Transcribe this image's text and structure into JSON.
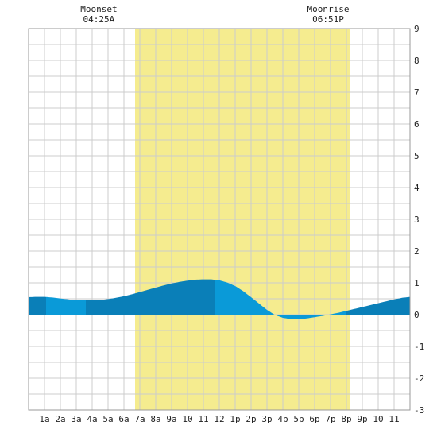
{
  "chart_data": {
    "type": "area",
    "title": "",
    "xlabel": "",
    "ylabel": "",
    "x_tick_labels": [
      "1a",
      "2a",
      "3a",
      "4a",
      "5a",
      "6a",
      "7a",
      "8a",
      "9a",
      "10",
      "11",
      "12",
      "1p",
      "2p",
      "3p",
      "4p",
      "5p",
      "6p",
      "7p",
      "8p",
      "9p",
      "10",
      "11"
    ],
    "xlim_hours": [
      0,
      24
    ],
    "ylim": [
      -3,
      9
    ],
    "y_ticks": [
      -3,
      -2,
      -1,
      0,
      1,
      2,
      3,
      4,
      5,
      6,
      7,
      8,
      9
    ],
    "grid": true,
    "daylight_hours": [
      6.7,
      20.2
    ],
    "annotations": [
      {
        "label": "Moonset",
        "time": "04:25A",
        "hour": 4.42
      },
      {
        "label": "Moonrise",
        "time": "06:51P",
        "hour": 18.85
      }
    ],
    "tide_points": [
      [
        0.0,
        0.55
      ],
      [
        0.5,
        0.56
      ],
      [
        1.0,
        0.56
      ],
      [
        1.5,
        0.54
      ],
      [
        2.0,
        0.51
      ],
      [
        2.5,
        0.48
      ],
      [
        3.0,
        0.46
      ],
      [
        3.5,
        0.45
      ],
      [
        4.0,
        0.45
      ],
      [
        4.5,
        0.46
      ],
      [
        5.0,
        0.49
      ],
      [
        5.5,
        0.53
      ],
      [
        6.0,
        0.58
      ],
      [
        6.5,
        0.64
      ],
      [
        7.0,
        0.71
      ],
      [
        7.5,
        0.78
      ],
      [
        8.0,
        0.85
      ],
      [
        8.5,
        0.92
      ],
      [
        9.0,
        0.98
      ],
      [
        9.5,
        1.03
      ],
      [
        10.0,
        1.07
      ],
      [
        10.5,
        1.1
      ],
      [
        11.0,
        1.11
      ],
      [
        11.5,
        1.11
      ],
      [
        12.0,
        1.08
      ],
      [
        12.5,
        1.01
      ],
      [
        13.0,
        0.9
      ],
      [
        13.5,
        0.74
      ],
      [
        14.0,
        0.55
      ],
      [
        14.5,
        0.35
      ],
      [
        15.0,
        0.15
      ],
      [
        15.5,
        -0.01
      ],
      [
        16.0,
        -0.1
      ],
      [
        16.5,
        -0.14
      ],
      [
        17.0,
        -0.14
      ],
      [
        17.5,
        -0.12
      ],
      [
        18.0,
        -0.08
      ],
      [
        18.5,
        -0.04
      ],
      [
        19.0,
        0.01
      ],
      [
        19.5,
        0.06
      ],
      [
        20.0,
        0.12
      ],
      [
        20.5,
        0.18
      ],
      [
        21.0,
        0.24
      ],
      [
        21.5,
        0.3
      ],
      [
        22.0,
        0.36
      ],
      [
        22.5,
        0.42
      ],
      [
        23.0,
        0.48
      ],
      [
        23.5,
        0.53
      ],
      [
        24.0,
        0.56
      ]
    ],
    "band_boundaries_hours": [
      0,
      1.1,
      3.6,
      11.7,
      20.0,
      24
    ],
    "colors": {
      "background": "#ffffff",
      "grid": "#cccccc",
      "frame": "#999999",
      "daylight": "#f5ec8f",
      "tide_dark": "#0a7fb8",
      "tide_light": "#0a9ad8",
      "text": "#222222"
    }
  }
}
